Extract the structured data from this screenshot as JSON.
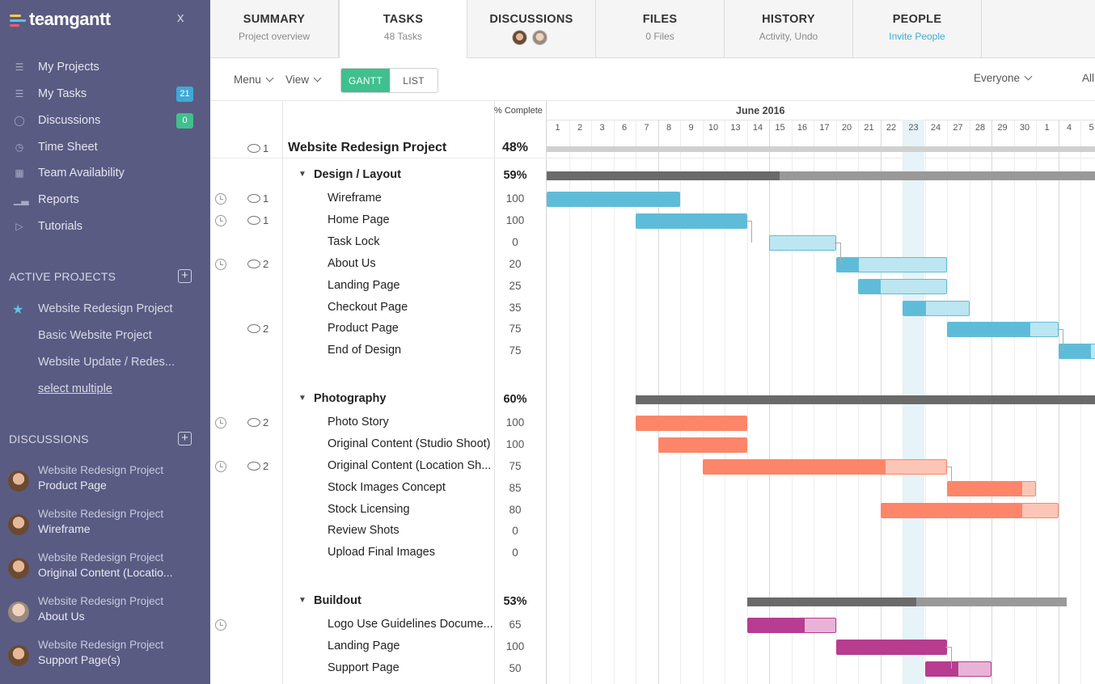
{
  "app": {
    "logo_text": "teamgantt",
    "close_label": "x"
  },
  "colors": {
    "sidebar": "#5a5b83",
    "accent_green": "#3fc08e",
    "badge_teal": "#3fa9d6",
    "blue_bar": "#5fbcd9",
    "blue_light": "#bce6f1",
    "orange_bar": "#fd8569",
    "orange_light": "#fdc5b6",
    "magenta_bar": "#b83c8f",
    "magenta_light": "#e8b3d6",
    "today": "#e6f3f8"
  },
  "sidebar": {
    "nav": [
      {
        "label": "My Projects",
        "icon": "list-icon"
      },
      {
        "label": "My Tasks",
        "icon": "tasks-icon",
        "badge": "21"
      },
      {
        "label": "Discussions",
        "icon": "chat-icon",
        "badge": "0"
      },
      {
        "label": "Time Sheet",
        "icon": "clock-icon"
      },
      {
        "label": "Team Availability",
        "icon": "calendar-icon"
      },
      {
        "label": "Reports",
        "icon": "chart-icon"
      },
      {
        "label": "Tutorials",
        "icon": "play-icon"
      }
    ],
    "active_projects_title": "ACTIVE PROJECTS",
    "projects": [
      "Website Redesign Project",
      "Basic Website Project",
      "Website Update / Redes...",
      "select multiple"
    ],
    "discussions_title": "DISCUSSIONS",
    "discussions": [
      {
        "project": "Website Redesign Project",
        "topic": "Product Page"
      },
      {
        "project": "Website Redesign Project",
        "topic": "Wireframe"
      },
      {
        "project": "Website Redesign Project",
        "topic": "Original Content (Locatio..."
      },
      {
        "project": "Website Redesign Project",
        "topic": "About Us"
      },
      {
        "project": "Website Redesign Project",
        "topic": "Support Page(s)"
      }
    ]
  },
  "tabs": [
    {
      "title": "SUMMARY",
      "sub": "Project overview"
    },
    {
      "title": "TASKS",
      "sub": "48 Tasks"
    },
    {
      "title": "DISCUSSIONS",
      "sub": ""
    },
    {
      "title": "FILES",
      "sub": "0 Files"
    },
    {
      "title": "HISTORY",
      "sub": "Activity, Undo"
    },
    {
      "title": "PEOPLE",
      "sub": "Invite People"
    }
  ],
  "toolbar": {
    "menu": "Menu",
    "view": "View",
    "gantt": "GANTT",
    "list": "LIST",
    "filter": "Everyone",
    "filter2": "All"
  },
  "grid": {
    "pct_header": "% Complete",
    "month": "June 2016",
    "days": [
      "1",
      "2",
      "3",
      "6",
      "7",
      "8",
      "9",
      "10",
      "13",
      "14",
      "15",
      "16",
      "17",
      "20",
      "21",
      "22",
      "23",
      "24",
      "27",
      "28",
      "29",
      "30",
      "1",
      "4",
      "5"
    ]
  },
  "rows": [
    {
      "name": "Website Redesign Project",
      "pct": "48%",
      "kind": "project",
      "comments": "1",
      "clock": false
    },
    {
      "name": "Design / Layout",
      "pct": "59%",
      "kind": "group",
      "clock": false
    },
    {
      "name": "Wireframe",
      "pct": "100",
      "kind": "task",
      "comments": "1",
      "clock": true
    },
    {
      "name": "Home Page",
      "pct": "100",
      "kind": "task",
      "comments": "1",
      "clock": true
    },
    {
      "name": "Task Lock",
      "pct": "0",
      "kind": "task",
      "clock": false
    },
    {
      "name": "About Us",
      "pct": "20",
      "kind": "task",
      "comments": "2",
      "clock": true
    },
    {
      "name": "Landing Page",
      "pct": "25",
      "kind": "task",
      "clock": false
    },
    {
      "name": "Checkout Page",
      "pct": "35",
      "kind": "task",
      "clock": false
    },
    {
      "name": "Product Page",
      "pct": "75",
      "kind": "task",
      "comments": "2",
      "clock": false
    },
    {
      "name": "End of Design",
      "pct": "75",
      "kind": "task",
      "clock": false
    },
    {
      "name": "Photography",
      "pct": "60%",
      "kind": "group",
      "clock": false
    },
    {
      "name": "Photo Story",
      "pct": "100",
      "kind": "task",
      "comments": "2",
      "clock": true
    },
    {
      "name": "Original Content (Studio Shoot)",
      "pct": "100",
      "kind": "task",
      "clock": false
    },
    {
      "name": "Original Content (Location Sh...",
      "pct": "75",
      "kind": "task",
      "comments": "2",
      "clock": true
    },
    {
      "name": "Stock Images Concept",
      "pct": "85",
      "kind": "task",
      "clock": false
    },
    {
      "name": "Stock Licensing",
      "pct": "80",
      "kind": "task",
      "clock": false
    },
    {
      "name": "Review Shots",
      "pct": "0",
      "kind": "task",
      "clock": false
    },
    {
      "name": "Upload Final Images",
      "pct": "0",
      "kind": "task",
      "clock": false
    },
    {
      "name": "Buildout",
      "pct": "53%",
      "kind": "group",
      "clock": false
    },
    {
      "name": "Logo Use Guidelines Docume...",
      "pct": "65",
      "kind": "task",
      "clock": true
    },
    {
      "name": "Landing Page",
      "pct": "100",
      "kind": "task",
      "clock": false
    },
    {
      "name": "Support Page",
      "pct": "50",
      "kind": "task",
      "clock": false
    }
  ]
}
